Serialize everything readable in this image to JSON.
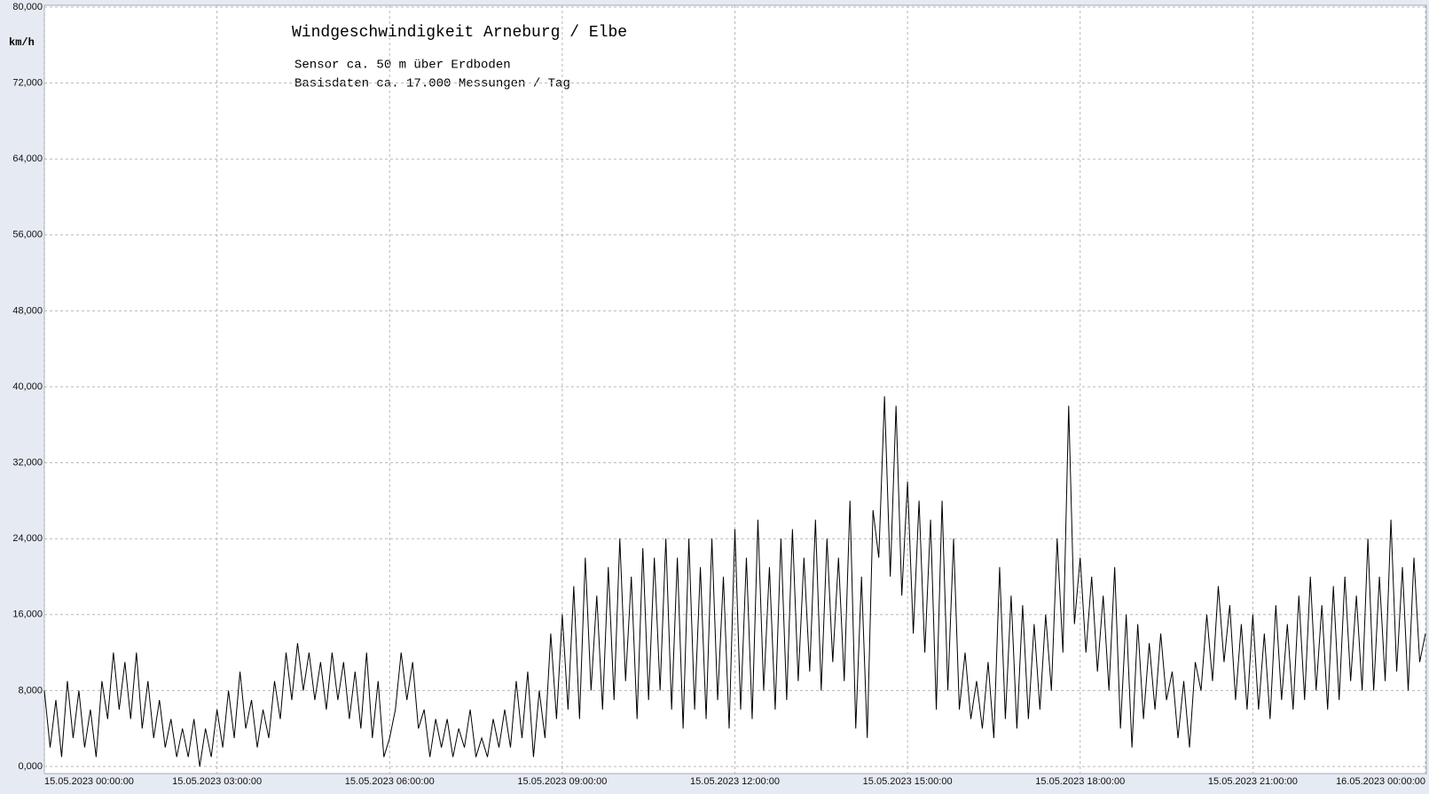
{
  "chart_data": {
    "type": "line",
    "title": "Windgeschwindigkeit  Arneburg / Elbe",
    "annotations": [
      "Sensor ca. 50 m über Erdboden",
      "Basisdaten ca. 17.000 Messungen / Tag"
    ],
    "y_label": "km/h",
    "color": "#000000",
    "grid": true,
    "xlim": [
      0,
      24
    ],
    "xticks": [
      {
        "value": 0,
        "label": "15.05.2023  00:00:00"
      },
      {
        "value": 3,
        "label": "15.05.2023  03:00:00"
      },
      {
        "value": 6,
        "label": "15.05.2023  06:00:00"
      },
      {
        "value": 9,
        "label": "15.05.2023  09:00:00"
      },
      {
        "value": 12,
        "label": "15.05.2023  12:00:00"
      },
      {
        "value": 15,
        "label": "15.05.2023  15:00:00"
      },
      {
        "value": 18,
        "label": "15.05.2023  18:00:00"
      },
      {
        "value": 21,
        "label": "15.05.2023  21:00:00"
      },
      {
        "value": 24,
        "label": "16.05.2023  00:00:00"
      }
    ],
    "ylim": [
      0,
      80
    ],
    "yticks": [
      {
        "value": 0,
        "label": "0,000"
      },
      {
        "value": 8,
        "label": "8,000"
      },
      {
        "value": 16,
        "label": "16,000"
      },
      {
        "value": 24,
        "label": "24,000"
      },
      {
        "value": 32,
        "label": "32,000"
      },
      {
        "value": 40,
        "label": "40,000"
      },
      {
        "value": 48,
        "label": "48,000"
      },
      {
        "value": 56,
        "label": "56,000"
      },
      {
        "value": 64,
        "label": "64,000"
      },
      {
        "value": 72,
        "label": "72,000"
      },
      {
        "value": 80,
        "label": "80,000"
      }
    ],
    "x": [
      0,
      0.1,
      0.2,
      0.3,
      0.4,
      0.5,
      0.6,
      0.7,
      0.8,
      0.9,
      1,
      1.1,
      1.2,
      1.3,
      1.4,
      1.5,
      1.6,
      1.7,
      1.8,
      1.9,
      2,
      2.1,
      2.2,
      2.3,
      2.4,
      2.5,
      2.6,
      2.7,
      2.8,
      2.9,
      3,
      3.1,
      3.2,
      3.3,
      3.4,
      3.5,
      3.6,
      3.7,
      3.8,
      3.9,
      4,
      4.1,
      4.2,
      4.3,
      4.4,
      4.5,
      4.6,
      4.7,
      4.8,
      4.9,
      5,
      5.1,
      5.2,
      5.3,
      5.4,
      5.5,
      5.6,
      5.7,
      5.8,
      5.9,
      6,
      6.1,
      6.2,
      6.3,
      6.4,
      6.5,
      6.6,
      6.7,
      6.8,
      6.9,
      7,
      7.1,
      7.2,
      7.3,
      7.4,
      7.5,
      7.6,
      7.7,
      7.8,
      7.9,
      8,
      8.1,
      8.2,
      8.3,
      8.4,
      8.5,
      8.6,
      8.7,
      8.8,
      8.9,
      9,
      9.1,
      9.2,
      9.3,
      9.4,
      9.5,
      9.6,
      9.7,
      9.8,
      9.9,
      10,
      10.1,
      10.2,
      10.3,
      10.4,
      10.5,
      10.6,
      10.7,
      10.8,
      10.9,
      11,
      11.1,
      11.2,
      11.3,
      11.4,
      11.5,
      11.6,
      11.7,
      11.8,
      11.9,
      12,
      12.1,
      12.2,
      12.3,
      12.4,
      12.5,
      12.6,
      12.7,
      12.8,
      12.9,
      13,
      13.1,
      13.2,
      13.3,
      13.4,
      13.5,
      13.6,
      13.7,
      13.8,
      13.9,
      14,
      14.1,
      14.2,
      14.3,
      14.4,
      14.5,
      14.6,
      14.7,
      14.8,
      14.9,
      15,
      15.1,
      15.2,
      15.3,
      15.4,
      15.5,
      15.6,
      15.7,
      15.8,
      15.9,
      16,
      16.1,
      16.2,
      16.3,
      16.4,
      16.5,
      16.6,
      16.7,
      16.8,
      16.9,
      17,
      17.1,
      17.2,
      17.3,
      17.4,
      17.5,
      17.6,
      17.7,
      17.8,
      17.9,
      18,
      18.1,
      18.2,
      18.3,
      18.4,
      18.5,
      18.6,
      18.7,
      18.8,
      18.9,
      19,
      19.1,
      19.2,
      19.3,
      19.4,
      19.5,
      19.6,
      19.7,
      19.8,
      19.9,
      20,
      20.1,
      20.2,
      20.3,
      20.4,
      20.5,
      20.6,
      20.7,
      20.8,
      20.9,
      21,
      21.1,
      21.2,
      21.3,
      21.4,
      21.5,
      21.6,
      21.7,
      21.8,
      21.9,
      22,
      22.1,
      22.2,
      22.3,
      22.4,
      22.5,
      22.6,
      22.7,
      22.8,
      22.9,
      23,
      23.1,
      23.2,
      23.3,
      23.4,
      23.5,
      23.6,
      23.7,
      23.8,
      23.9,
      24
    ],
    "values": [
      8,
      2,
      7,
      1,
      9,
      3,
      8,
      2,
      6,
      1,
      9,
      5,
      12,
      6,
      11,
      5,
      12,
      4,
      9,
      3,
      7,
      2,
      5,
      1,
      4,
      1,
      5,
      0,
      4,
      1,
      6,
      2,
      8,
      3,
      10,
      4,
      7,
      2,
      6,
      3,
      9,
      5,
      12,
      7,
      13,
      8,
      12,
      7,
      11,
      6,
      12,
      7,
      11,
      5,
      10,
      4,
      12,
      3,
      9,
      1,
      3,
      6,
      12,
      7,
      11,
      4,
      6,
      1,
      5,
      2,
      5,
      1,
      4,
      2,
      6,
      1,
      3,
      1,
      5,
      2,
      6,
      2,
      9,
      3,
      10,
      1,
      8,
      3,
      14,
      5,
      16,
      6,
      19,
      5,
      22,
      8,
      18,
      6,
      21,
      7,
      24,
      9,
      20,
      5,
      23,
      7,
      22,
      8,
      24,
      6,
      22,
      4,
      24,
      6,
      21,
      5,
      24,
      7,
      20,
      4,
      25,
      6,
      22,
      5,
      26,
      8,
      21,
      6,
      24,
      7,
      25,
      9,
      22,
      10,
      26,
      8,
      24,
      11,
      22,
      9,
      28,
      4,
      20,
      3,
      27,
      22,
      39,
      20,
      38,
      18,
      30,
      14,
      28,
      12,
      26,
      6,
      28,
      8,
      24,
      6,
      12,
      5,
      9,
      4,
      11,
      3,
      21,
      5,
      18,
      4,
      17,
      5,
      15,
      6,
      16,
      8,
      24,
      12,
      38,
      15,
      22,
      12,
      20,
      10,
      18,
      8,
      21,
      4,
      16,
      2,
      15,
      5,
      13,
      6,
      14,
      7,
      10,
      3,
      9,
      2,
      11,
      8,
      16,
      9,
      19,
      11,
      17,
      7,
      15,
      6,
      16,
      6,
      14,
      5,
      17,
      7,
      15,
      6,
      18,
      7,
      20,
      8,
      17,
      6,
      19,
      7,
      20,
      9,
      18,
      8,
      24,
      8,
      20,
      9,
      26,
      10,
      21,
      8,
      22,
      11,
      14
    ]
  }
}
